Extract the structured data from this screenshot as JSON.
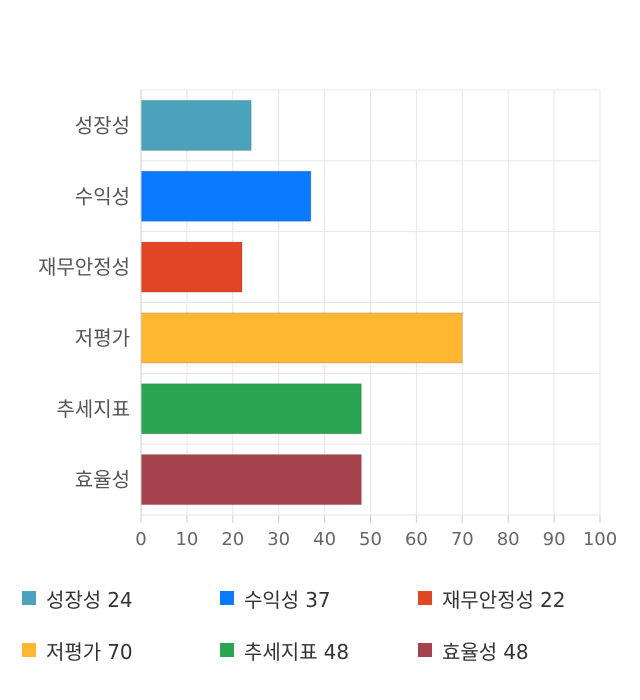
{
  "chart_data": {
    "type": "bar",
    "orientation": "horizontal",
    "categories": [
      "성장성",
      "수익성",
      "재무안정성",
      "저평가",
      "추세지표",
      "효율성"
    ],
    "values": [
      24,
      37,
      22,
      70,
      48,
      48
    ],
    "colors": [
      "#4AA3BA",
      "#0A7AFF",
      "#E04623",
      "#FFB731",
      "#2AA552",
      "#A6424E"
    ],
    "xlim": [
      0,
      100
    ],
    "xticks": [
      0,
      10,
      20,
      30,
      40,
      50,
      60,
      70,
      80,
      90,
      100
    ],
    "grid": true,
    "legend_position": "bottom"
  }
}
